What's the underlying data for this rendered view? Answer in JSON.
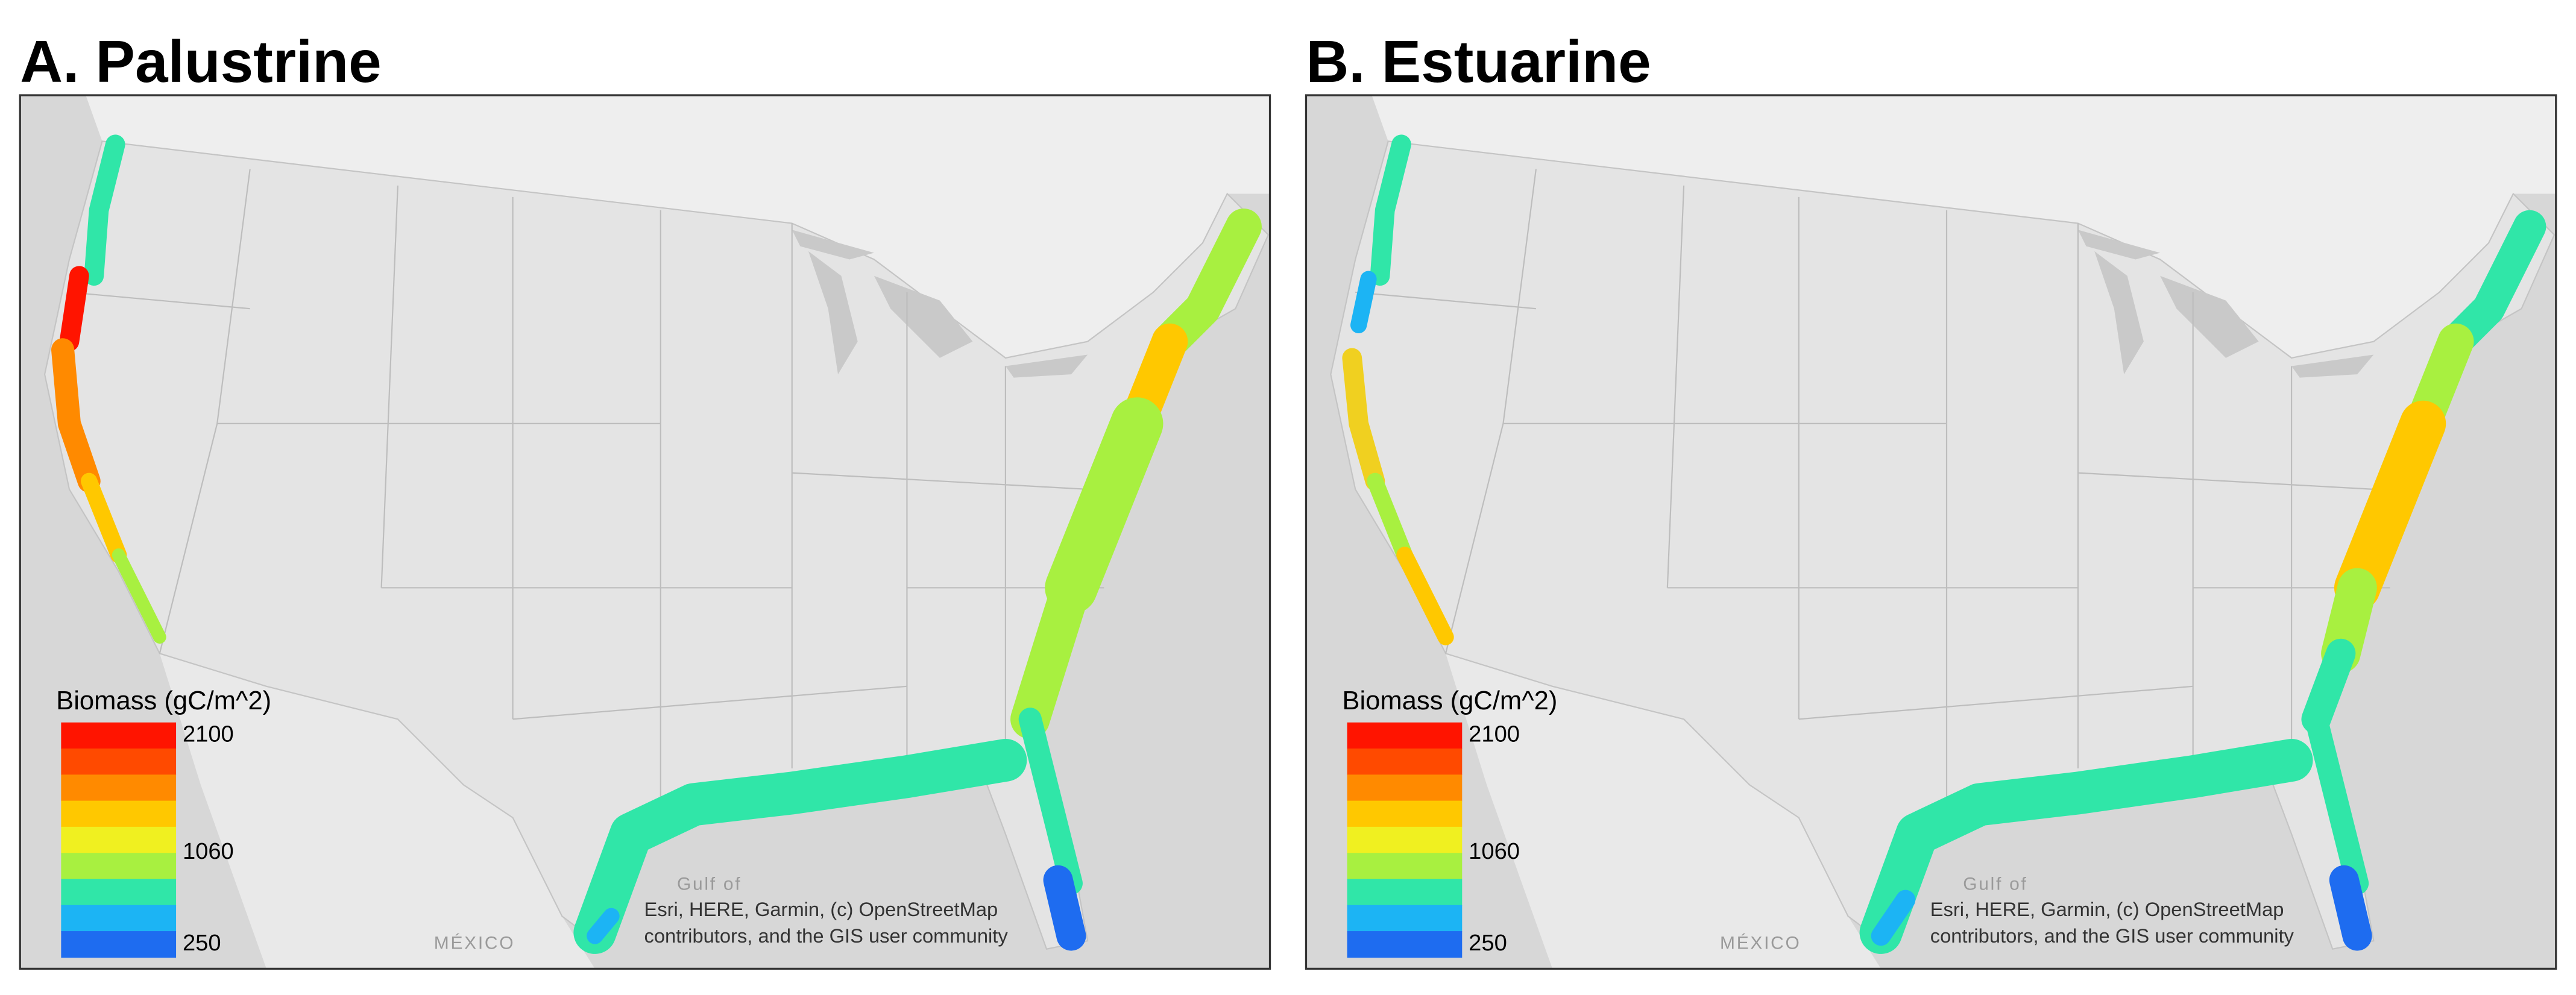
{
  "panels": [
    {
      "title": "A. Palustrine",
      "legend": {
        "title": "Biomass (gC/m^2)",
        "colors": [
          "#ff1400",
          "#ff4a00",
          "#ff8a00",
          "#ffc800",
          "#f0f020",
          "#a8f040",
          "#30e6a8",
          "#1cb4f4",
          "#1e6cf0"
        ],
        "ticks": [
          2100,
          1060,
          250
        ]
      },
      "attribution": [
        "Esri, HERE, Garmin, (c) OpenStreetMap",
        "contributors, and the GIS user community"
      ],
      "place_labels": [
        "MÉXICO",
        "Gulf of"
      ]
    },
    {
      "title": "B. Estuarine",
      "legend": {
        "title": "Biomass (gC/m^2)",
        "colors": [
          "#ff1400",
          "#ff4a00",
          "#ff8a00",
          "#ffc800",
          "#f0f020",
          "#a8f040",
          "#30e6a8",
          "#1cb4f4",
          "#1e6cf0"
        ],
        "ticks": [
          2100,
          1060,
          250
        ]
      },
      "attribution": [
        "Esri, HERE, Garmin, (c) OpenStreetMap",
        "contributors, and the GIS user community"
      ],
      "place_labels": [
        "MÉXICO",
        "Gulf of"
      ]
    }
  ]
}
